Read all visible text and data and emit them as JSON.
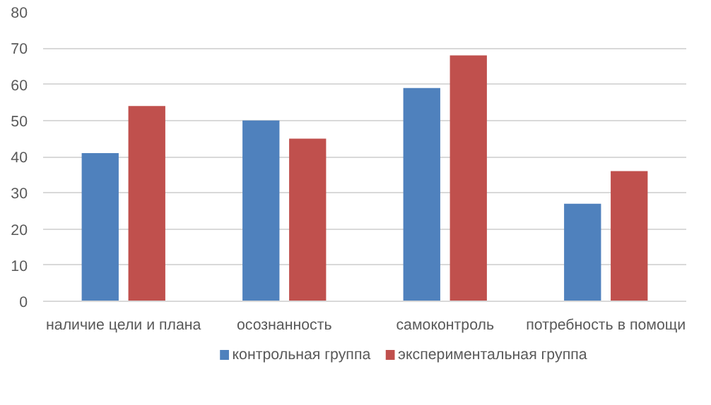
{
  "chart_data": {
    "type": "bar",
    "categories": [
      "наличие цели и плана",
      "осознанность",
      "самоконтроль",
      "потребность в помощи"
    ],
    "series": [
      {
        "name": "контрольная группа",
        "color": "#4f81bd",
        "values": [
          41,
          50,
          59,
          27
        ]
      },
      {
        "name": "экспериментальная группа",
        "color": "#c0504d",
        "values": [
          54,
          45,
          68,
          36
        ]
      }
    ],
    "ylim": [
      0,
      80
    ],
    "yticks": [
      0,
      10,
      20,
      30,
      40,
      50,
      60,
      70,
      80
    ],
    "grid": "y",
    "legend": "bottom"
  }
}
